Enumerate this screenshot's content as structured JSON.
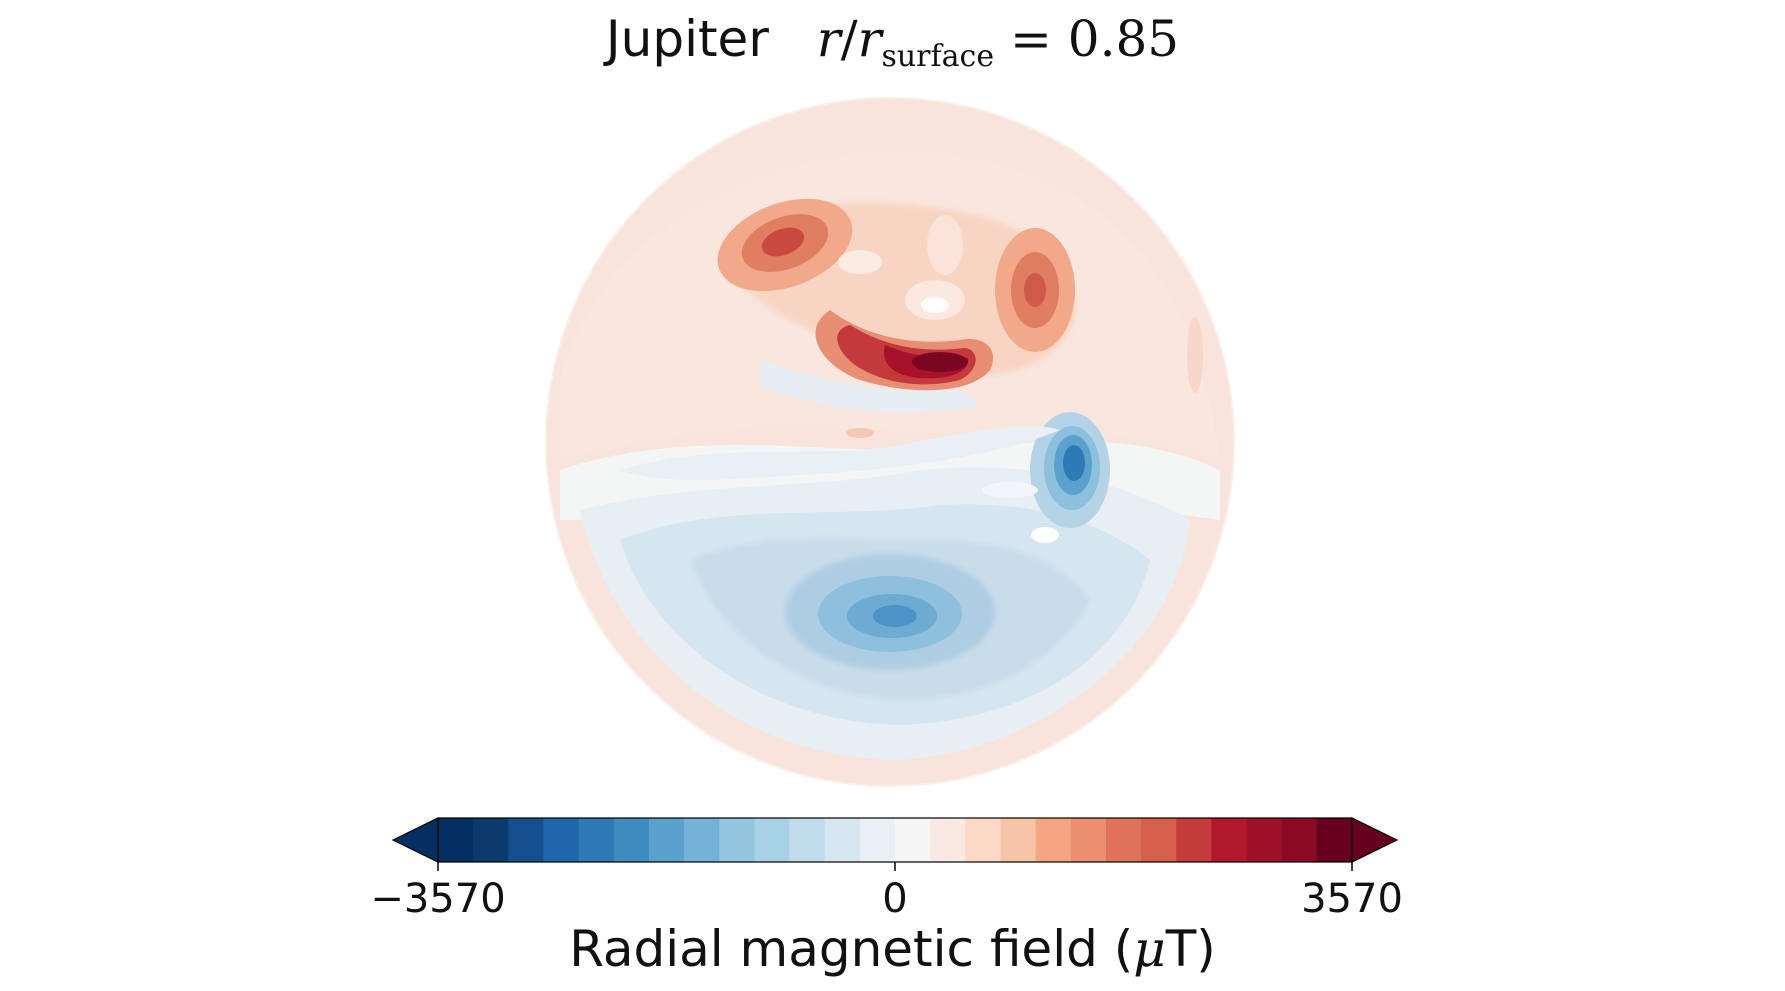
{
  "chart_data": {
    "type": "heatmap",
    "projection": "orthographic",
    "title": {
      "main": "Jupiter",
      "eq_r": "r",
      "eq_sep": "/",
      "eq_r2": "r",
      "eq_sub": "surface",
      "eq_rest": " = 0.85"
    },
    "colorbar": {
      "label_prefix": "Radial magnetic field (",
      "label_mu": "μ",
      "label_suffix": "T)",
      "vmin": -3570,
      "vmax": 3570,
      "ticks": [
        {
          "value": -3570,
          "label": "−3570"
        },
        {
          "value": 0,
          "label": "0"
        },
        {
          "value": 3570,
          "label": "3570"
        }
      ],
      "extend": "both",
      "colormap": "RdBu_r",
      "levels_colors": [
        "#053061",
        "#0b3a6f",
        "#164f8d",
        "#2166ac",
        "#2f79b5",
        "#3d8bbf",
        "#5aa1cd",
        "#74b3d7",
        "#92c5de",
        "#a8d1e5",
        "#c0dcec",
        "#d6e7f1",
        "#e8f0f5",
        "#f5f5f5",
        "#f9e9e2",
        "#fbd9c6",
        "#f7c4a8",
        "#f4a582",
        "#eb8f6f",
        "#de725b",
        "#d6604d",
        "#c43c3c",
        "#b2182b",
        "#a01128",
        "#8a0a24",
        "#67001f"
      ]
    },
    "field_features": [
      {
        "sign": "positive",
        "label": "strong positive patch",
        "value": 3570
      },
      {
        "sign": "negative",
        "label": "negative spot",
        "value": -2400
      },
      {
        "sign": "negative",
        "label": "southern negative patch",
        "value": -2000
      }
    ]
  }
}
